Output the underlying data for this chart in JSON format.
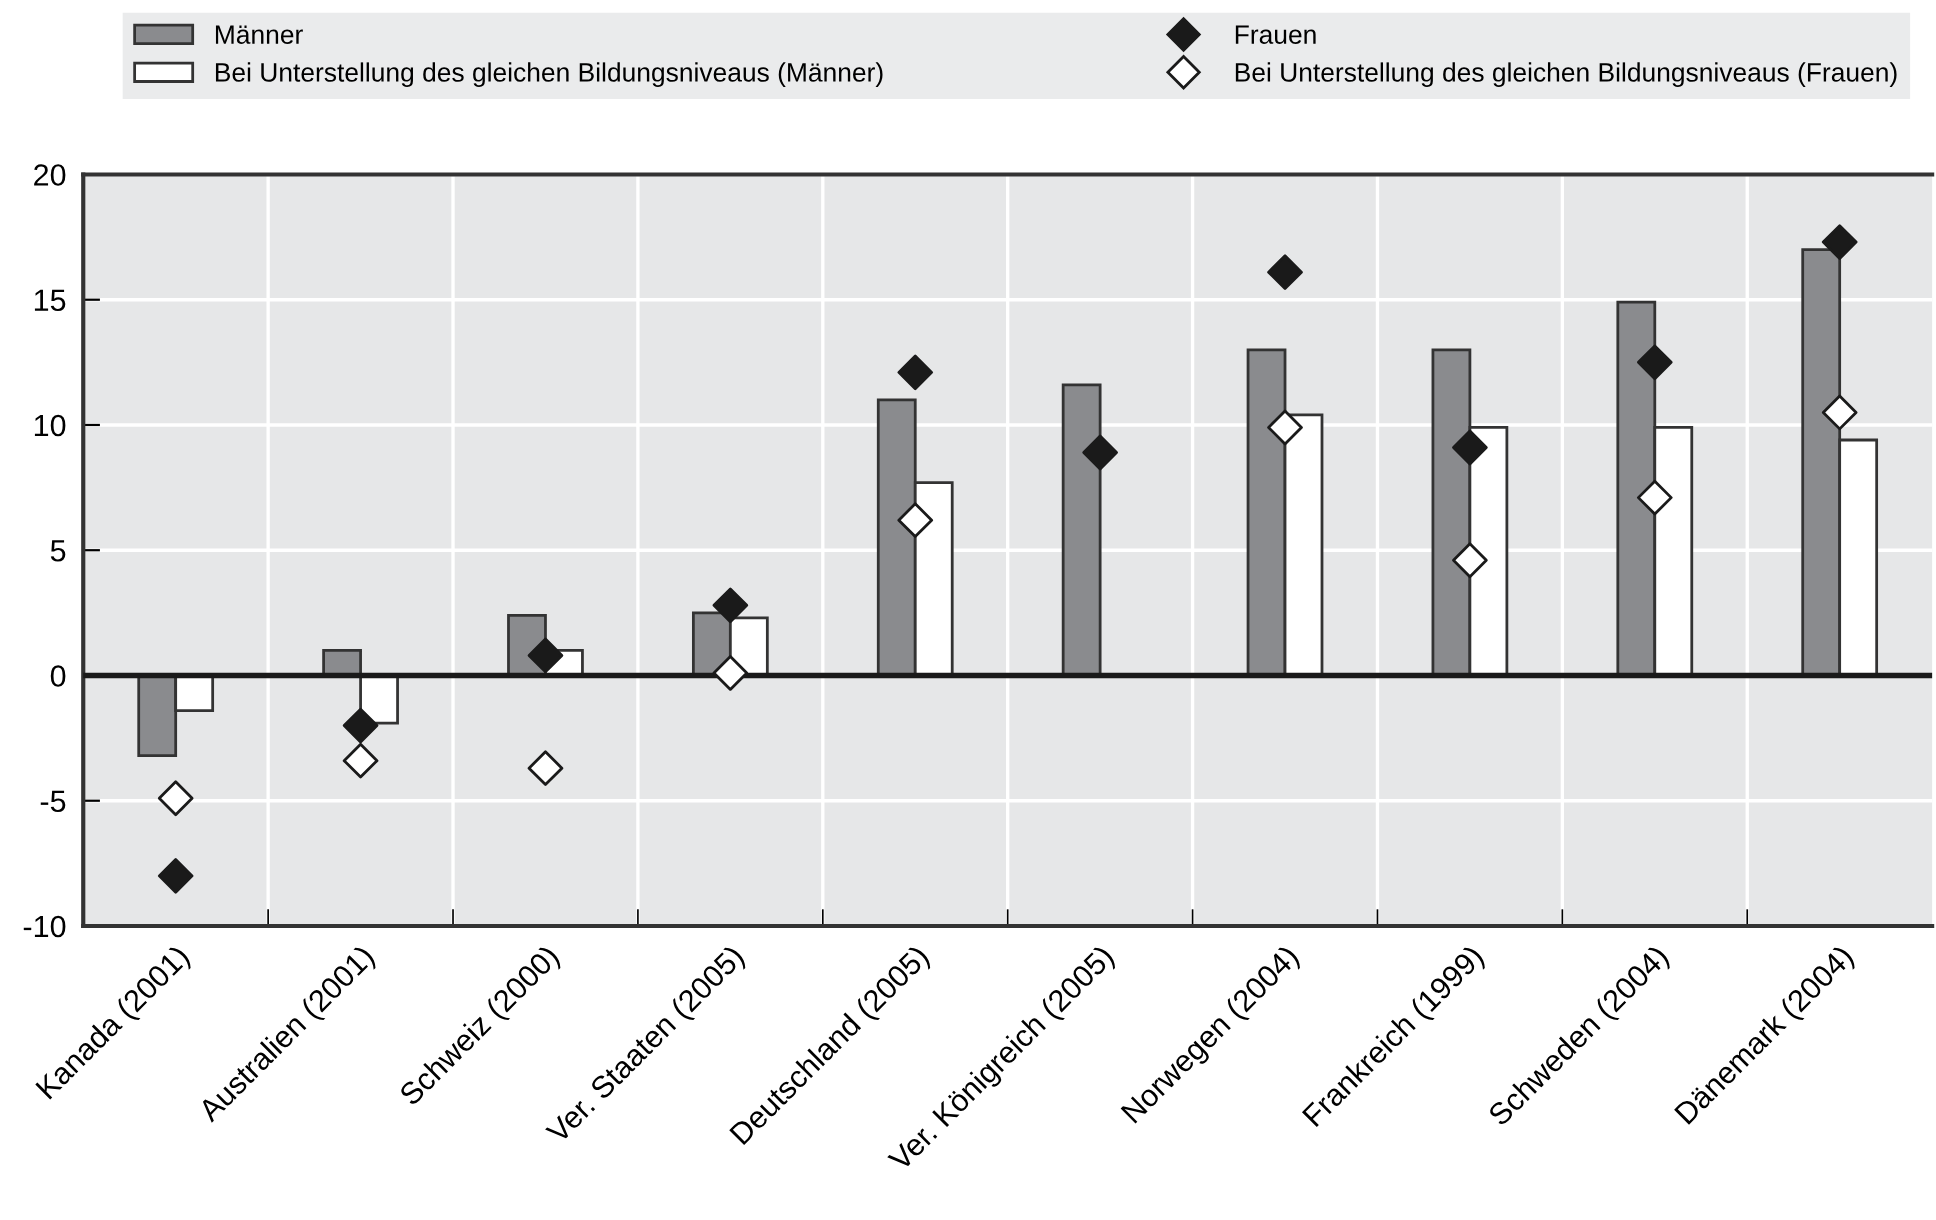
{
  "chart_data": {
    "type": "bar",
    "categories": [
      "Kanada (2001)",
      "Australien (2001)",
      "Schweiz (2000)",
      "Ver. Staaten (2005)",
      "Deutschland (2005)",
      "Ver. Königreich (2005)",
      "Norwegen (2004)",
      "Frankreich (1999)",
      "Schweden (2004)",
      "Dänemark (2004)"
    ],
    "series": [
      {
        "name": "Männer",
        "color": "#8a8b8e",
        "values": [
          -3.2,
          1.0,
          2.4,
          2.5,
          11.0,
          11.6,
          13.0,
          13.0,
          14.9,
          17.0
        ]
      },
      {
        "name": "Bei Unterstellung des gleichen Bildungsniveaus (Männer)",
        "color": "#ffffff",
        "values": [
          -1.4,
          -1.9,
          1.0,
          2.3,
          7.7,
          null,
          10.4,
          9.9,
          9.9,
          9.4
        ]
      },
      {
        "name": "Frauen",
        "type": "scatter",
        "marker": "diamond",
        "color": "#1a1a1a",
        "values": [
          -8.0,
          -2.0,
          0.8,
          2.8,
          12.1,
          8.9,
          16.1,
          9.1,
          12.5,
          17.3
        ]
      },
      {
        "name": "Bei Unterstellung des gleichen Bildungsniveaus (Frauen)",
        "type": "scatter",
        "marker": "diamond",
        "color": "#ffffff",
        "values": [
          -4.9,
          -3.4,
          -3.7,
          0.1,
          6.2,
          null,
          9.9,
          4.6,
          7.1,
          10.5
        ]
      }
    ],
    "ylim": [
      -10,
      20
    ],
    "yticks": [
      -10,
      -5,
      0,
      5,
      10,
      15,
      20
    ],
    "ref_lines": [
      {
        "axis": "y",
        "value": 0,
        "color": "#1a1a1a"
      }
    ],
    "grid": true,
    "legend": "top"
  }
}
